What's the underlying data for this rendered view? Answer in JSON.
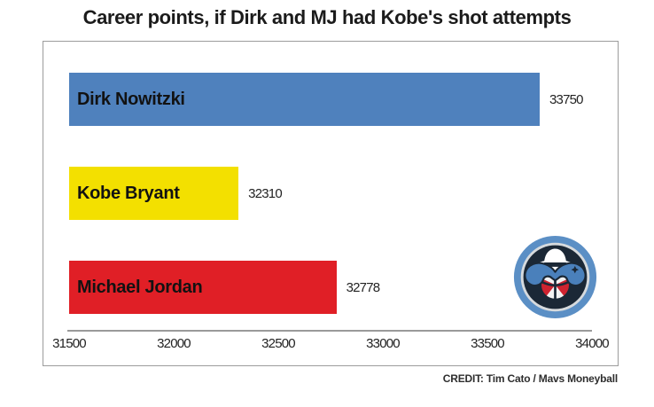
{
  "title": "Career points, if Dirk and MJ had Kobe's shot attempts",
  "credit": "CREDIT: Tim Cato / Mavs Moneyball",
  "logo": {
    "name": "mavs-moneyball-logo",
    "colors": {
      "outer_ring": "#5b8fc5",
      "silver_ring": "#d6dadd",
      "inner_circle": "#1b2836",
      "hat": "#ffffff",
      "mustache": "#4a80bb",
      "ball_red": "#cf2330",
      "ball_white": "#f2f2f2"
    }
  },
  "chart_data": {
    "type": "bar",
    "orientation": "horizontal",
    "title": "Career points, if Dirk and MJ had Kobe's shot attempts",
    "categories": [
      "Dirk Nowitzki",
      "Kobe Bryant",
      "Michael Jordan"
    ],
    "values": [
      33750,
      32310,
      32778
    ],
    "bars": [
      {
        "label": "Dirk Nowitzki",
        "value": 33750,
        "value_label": "33750",
        "color": "#4f81bd"
      },
      {
        "label": "Kobe Bryant",
        "value": 32310,
        "value_label": "32310",
        "color": "#f3e000"
      },
      {
        "label": "Michael Jordan",
        "value": 32778,
        "value_label": "32778",
        "color": "#e01f26"
      }
    ],
    "xlabel": "",
    "ylabel": "",
    "xlim": [
      31500,
      34000
    ],
    "xticks": [
      31500,
      32000,
      32500,
      33000,
      33500,
      34000
    ],
    "xticklabels": [
      "31500",
      "32000",
      "32500",
      "33000",
      "33500",
      "34000"
    ],
    "grid": false,
    "legend": false,
    "legend_position": "none"
  }
}
